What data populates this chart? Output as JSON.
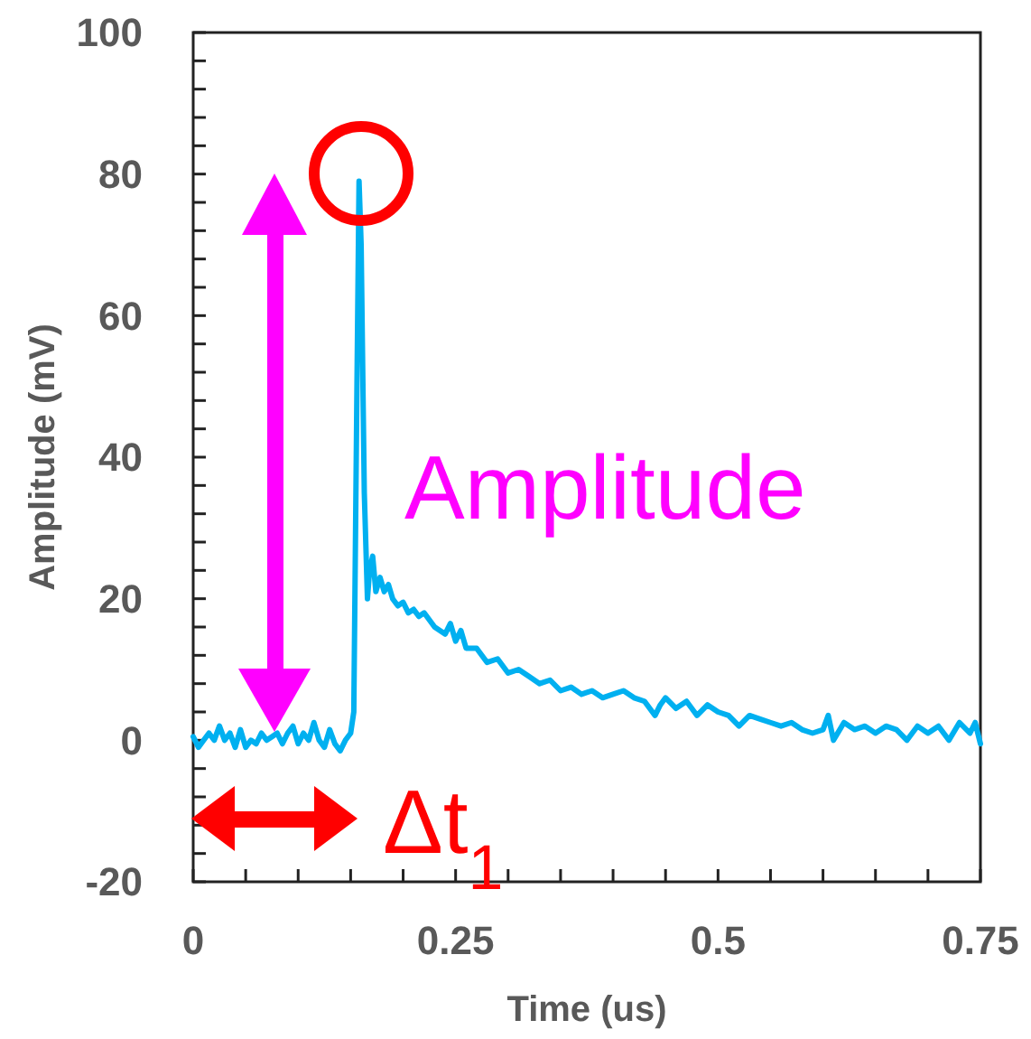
{
  "chart_data": {
    "type": "line",
    "xlabel": "Time (us)",
    "ylabel": "Amplitude (mV)",
    "x": [
      0,
      0.005,
      0.01,
      0.015,
      0.02,
      0.025,
      0.03,
      0.035,
      0.04,
      0.045,
      0.05,
      0.055,
      0.06,
      0.065,
      0.07,
      0.075,
      0.08,
      0.085,
      0.09,
      0.095,
      0.1,
      0.105,
      0.11,
      0.115,
      0.12,
      0.125,
      0.13,
      0.135,
      0.14,
      0.145,
      0.15,
      0.153,
      0.156,
      0.158,
      0.16,
      0.163,
      0.166,
      0.168,
      0.171,
      0.174,
      0.178,
      0.182,
      0.186,
      0.19,
      0.195,
      0.2,
      0.205,
      0.21,
      0.215,
      0.22,
      0.23,
      0.24,
      0.245,
      0.25,
      0.255,
      0.26,
      0.27,
      0.28,
      0.29,
      0.3,
      0.31,
      0.32,
      0.33,
      0.34,
      0.35,
      0.36,
      0.37,
      0.38,
      0.39,
      0.4,
      0.41,
      0.42,
      0.43,
      0.44,
      0.445,
      0.45,
      0.46,
      0.47,
      0.48,
      0.49,
      0.5,
      0.51,
      0.52,
      0.53,
      0.54,
      0.55,
      0.56,
      0.57,
      0.58,
      0.59,
      0.6,
      0.605,
      0.61,
      0.62,
      0.63,
      0.64,
      0.65,
      0.66,
      0.67,
      0.68,
      0.69,
      0.7,
      0.71,
      0.72,
      0.73,
      0.74,
      0.745,
      0.75
    ],
    "series": [
      {
        "color": "#00b0f0",
        "values": [
          0.5,
          -1,
          0,
          1,
          0,
          2,
          0,
          1,
          -1,
          1.5,
          -1,
          0,
          -0.5,
          1,
          0,
          0.5,
          1,
          -0.5,
          1,
          2,
          -0.5,
          1,
          0,
          2.5,
          0,
          -1,
          1.5,
          -0.5,
          -1.5,
          0,
          1,
          4,
          50,
          79,
          70,
          35,
          20,
          24,
          26,
          21,
          23,
          21,
          22,
          20,
          19,
          19.5,
          18,
          18.5,
          17.5,
          18,
          16,
          15,
          16.5,
          14,
          15.5,
          13,
          13,
          11,
          11.5,
          9.5,
          10,
          9,
          8,
          8.5,
          7,
          7.5,
          6.5,
          7,
          6,
          6.5,
          7,
          6,
          5.5,
          3.5,
          5,
          6,
          4.5,
          5.5,
          3.5,
          5,
          4,
          3.5,
          2,
          3.5,
          3,
          2.5,
          2,
          2.5,
          1.5,
          1,
          1.5,
          3.5,
          0,
          2.5,
          1.5,
          2,
          1,
          2,
          1.5,
          0,
          2,
          1,
          2,
          0,
          2.5,
          1,
          2.5,
          -0.5
        ]
      }
    ],
    "xlim": [
      0,
      0.75
    ],
    "ylim": [
      -20,
      100
    ],
    "xticks": [
      0,
      {
        "value": 0.05,
        "label": null
      },
      {
        "value": 0.1,
        "label": null
      },
      {
        "value": 0.15,
        "label": null
      },
      {
        "value": 0.2,
        "label": null
      },
      0.25,
      {
        "value": 0.3,
        "label": null
      },
      {
        "value": 0.35,
        "label": null
      },
      {
        "value": 0.4,
        "label": null
      },
      {
        "value": 0.45,
        "label": null
      },
      0.5,
      {
        "value": 0.55,
        "label": null
      },
      {
        "value": 0.6,
        "label": null
      },
      {
        "value": 0.65,
        "label": null
      },
      {
        "value": 0.7,
        "label": null
      },
      0.75
    ],
    "yticks": [
      -20,
      {
        "value": -16,
        "label": null
      },
      {
        "value": -12,
        "label": null
      },
      {
        "value": -8,
        "label": null
      },
      {
        "value": -4,
        "label": null
      },
      0,
      {
        "value": 4,
        "label": null
      },
      {
        "value": 8,
        "label": null
      },
      {
        "value": 12,
        "label": null
      },
      {
        "value": 16,
        "label": null
      },
      20,
      {
        "value": 24,
        "label": null
      },
      {
        "value": 28,
        "label": null
      },
      {
        "value": 32,
        "label": null
      },
      {
        "value": 36,
        "label": null
      },
      40,
      {
        "value": 44,
        "label": null
      },
      {
        "value": 48,
        "label": null
      },
      {
        "value": 52,
        "label": null
      },
      {
        "value": 56,
        "label": null
      },
      60,
      {
        "value": 64,
        "label": null
      },
      {
        "value": 68,
        "label": null
      },
      {
        "value": 72,
        "label": null
      },
      {
        "value": 76,
        "label": null
      },
      80,
      {
        "value": 84,
        "label": null
      },
      {
        "value": 88,
        "label": null
      },
      {
        "value": 92,
        "label": null
      },
      {
        "value": 96,
        "label": null
      },
      100
    ],
    "annotations": [
      "Amplitude",
      "Δt$_{1}$"
    ],
    "grid": false,
    "marker": "none",
    "line_style": "solid"
  }
}
